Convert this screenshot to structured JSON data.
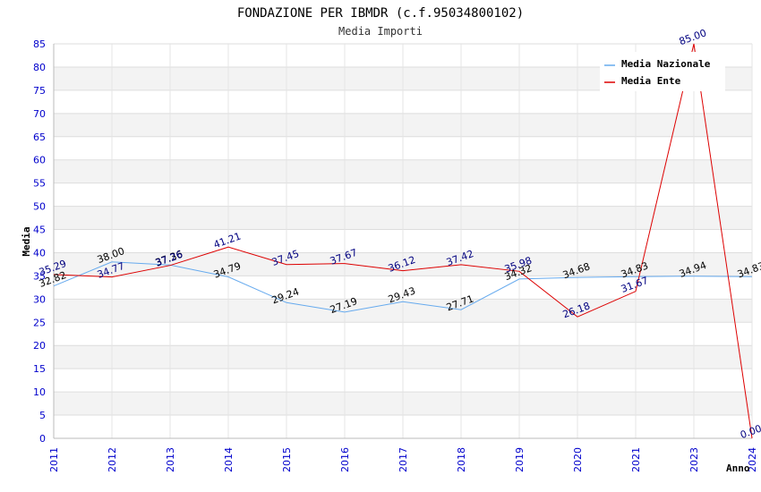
{
  "chart_data": {
    "type": "line",
    "title": "FONDAZIONE PER IBMDR (c.f.95034800102)",
    "subtitle": "Media Importi",
    "xlabel": "Anno",
    "ylabel": "Media",
    "categories": [
      "2011",
      "2012",
      "2013",
      "2014",
      "2015",
      "2016",
      "2017",
      "2018",
      "2019",
      "2020",
      "2021",
      "2023",
      "2024"
    ],
    "ylim": [
      0,
      85
    ],
    "yticks": [
      "0",
      "5",
      "10",
      "15",
      "20",
      "25",
      "30",
      "35",
      "40",
      "45",
      "50",
      "55",
      "60",
      "65",
      "70",
      "75",
      "80",
      "85"
    ],
    "legend_position": "top-right",
    "series": [
      {
        "name": "Media Nazionale",
        "color": "#66aaee",
        "label_color": "#000000",
        "values": [
          32.82,
          38.0,
          37.36,
          34.79,
          29.24,
          27.19,
          29.43,
          27.71,
          34.32,
          34.68,
          34.83,
          34.94,
          34.83
        ],
        "labels": [
          "32.82",
          "38.00",
          "37.36",
          "34.79",
          "29.24",
          "27.19",
          "29.43",
          "27.71",
          "34.32",
          "34.68",
          "34.83",
          "34.94",
          "34.83"
        ]
      },
      {
        "name": "Media Ente",
        "color": "#dd0000",
        "label_color": "#000080",
        "values": [
          35.29,
          34.77,
          37.26,
          41.21,
          37.45,
          37.67,
          36.12,
          37.42,
          35.98,
          26.18,
          31.67,
          85.0,
          0.0
        ],
        "labels": [
          "35.29",
          "34.77",
          "37.26",
          "41.21",
          "37.45",
          "37.67",
          "36.12",
          "37.42",
          "35.98",
          "26.18",
          "31.67",
          "85.00",
          "0.00"
        ]
      }
    ]
  }
}
